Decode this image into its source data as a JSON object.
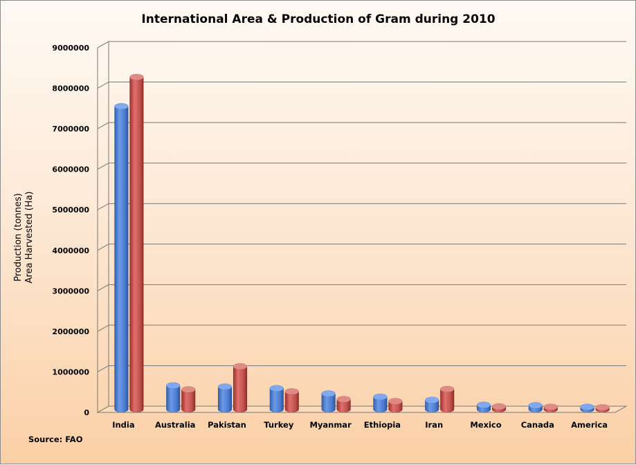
{
  "chart_data": {
    "type": "bar",
    "title": "International Area & Production of Gram during 2010",
    "ylabel_lines": [
      "Production (tonnes)",
      "Area Harvested (Ha)"
    ],
    "xlabel": "",
    "ylim": [
      0,
      9000000
    ],
    "yticks": [
      "0",
      "1000000",
      "2000000",
      "3000000",
      "4000000",
      "5000000",
      "6000000",
      "7000000",
      "8000000",
      "9000000"
    ],
    "categories": [
      "India",
      "Australia",
      "Pakistan",
      "Turkey",
      "Myanmar",
      "Ethiopia",
      "Iran",
      "Mexico",
      "Canada",
      "America"
    ],
    "series": [
      {
        "values": [
          7480000,
          590000,
          560000,
          520000,
          390000,
          310000,
          230000,
          110000,
          100000,
          60000
        ]
      },
      {
        "values": [
          8200000,
          490000,
          1060000,
          440000,
          250000,
          200000,
          500000,
          70000,
          60000,
          50000
        ]
      }
    ],
    "grid": true,
    "legend": "none",
    "colors": [
      "#4a7bd0",
      "#c0504d"
    ]
  },
  "source_text": "Source: FAO"
}
